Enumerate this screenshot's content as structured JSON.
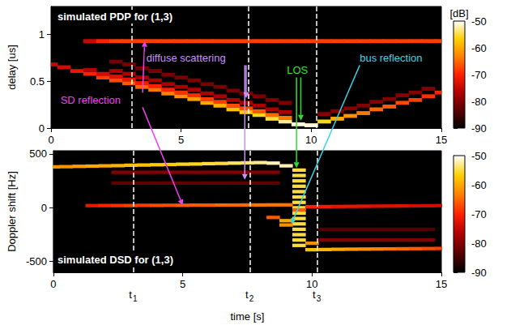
{
  "chart_data": [
    {
      "type": "heatmap",
      "title": "simulated PDP for (1,3)",
      "ylabel": "delay [us]",
      "xlim": [
        0,
        15
      ],
      "xticks": [
        0,
        5,
        10,
        15
      ],
      "ylim": [
        0,
        1.3
      ],
      "yticks": [
        0,
        0.5,
        1
      ],
      "colorbar": {
        "label": "[dB]",
        "range": [
          -90,
          -50
        ],
        "ticks": [
          -50,
          -60,
          -70,
          -80,
          -90
        ]
      },
      "vlines": [
        {
          "x": 3.1
        },
        {
          "x": 7.6
        },
        {
          "x": 10.2
        }
      ],
      "annotations": [
        {
          "text": "SD reflection",
          "color": "#f040f0"
        },
        {
          "text": "diffuse scattering",
          "color": "#c890ff"
        },
        {
          "text": "LOS",
          "color": "#30e030"
        },
        {
          "text": "bus reflection",
          "color": "#30d8e8"
        }
      ],
      "cells": [
        [
          0,
          0.68,
          -75
        ],
        [
          0.5,
          0.65,
          -74
        ],
        [
          1,
          0.61,
          -72
        ],
        [
          1.5,
          0.58,
          -70
        ],
        [
          2,
          0.54,
          -68
        ],
        [
          2.5,
          0.51,
          -67
        ],
        [
          3,
          0.48,
          -66
        ],
        [
          3.5,
          0.44,
          -65
        ],
        [
          4,
          0.41,
          -64
        ],
        [
          4.5,
          0.37,
          -63
        ],
        [
          5,
          0.34,
          -62
        ],
        [
          5.5,
          0.31,
          -61
        ],
        [
          6,
          0.27,
          -60
        ],
        [
          6.5,
          0.24,
          -59
        ],
        [
          7,
          0.2,
          -58
        ],
        [
          7.5,
          0.17,
          -57
        ],
        [
          8,
          0.14,
          -56
        ],
        [
          8.5,
          0.1,
          -55
        ],
        [
          9,
          0.07,
          -53
        ],
        [
          9.5,
          0.04,
          -51
        ],
        [
          10,
          0.03,
          -51
        ],
        [
          10.5,
          0.07,
          -56
        ],
        [
          11,
          0.1,
          -60
        ],
        [
          11.5,
          0.13,
          -62
        ],
        [
          12,
          0.16,
          -64
        ],
        [
          12.5,
          0.2,
          -65
        ],
        [
          13,
          0.23,
          -66
        ],
        [
          13.5,
          0.27,
          -67
        ],
        [
          14,
          0.3,
          -68
        ],
        [
          14.5,
          0.34,
          -69
        ],
        [
          15,
          0.38,
          -70
        ],
        [
          1.5,
          0.62,
          -76
        ],
        [
          2,
          0.58,
          -74
        ],
        [
          2.5,
          0.55,
          -73
        ],
        [
          3,
          0.52,
          -72
        ],
        [
          3.5,
          0.48,
          -71
        ],
        [
          4,
          0.45,
          -70
        ],
        [
          4.5,
          0.41,
          -70
        ],
        [
          5,
          0.38,
          -69
        ],
        [
          5.5,
          0.35,
          -69
        ],
        [
          6,
          0.31,
          -68
        ],
        [
          6.5,
          0.28,
          -68
        ],
        [
          7,
          0.24,
          -67
        ],
        [
          7.5,
          0.21,
          -67
        ],
        [
          8,
          0.18,
          -66
        ],
        [
          8.5,
          0.14,
          -65
        ],
        [
          9,
          0.11,
          -64
        ],
        [
          1.5,
          0.93,
          -75
        ],
        [
          2,
          0.93,
          -70
        ],
        [
          2.5,
          0.93,
          -68
        ],
        [
          3,
          0.93,
          -68
        ],
        [
          3.5,
          0.93,
          -68
        ],
        [
          4,
          0.93,
          -68
        ],
        [
          4.5,
          0.93,
          -68
        ],
        [
          5,
          0.93,
          -68
        ],
        [
          5.5,
          0.93,
          -68
        ],
        [
          6,
          0.93,
          -68
        ],
        [
          6.5,
          0.93,
          -68
        ],
        [
          7,
          0.93,
          -68
        ],
        [
          7.5,
          0.93,
          -68
        ],
        [
          8,
          0.93,
          -68
        ],
        [
          8.5,
          0.93,
          -68
        ],
        [
          9,
          0.93,
          -68
        ],
        [
          9.5,
          0.93,
          -68
        ],
        [
          10,
          0.93,
          -68
        ],
        [
          10.5,
          0.93,
          -68
        ],
        [
          11,
          0.93,
          -68
        ],
        [
          11.5,
          0.93,
          -68
        ],
        [
          12,
          0.93,
          -68
        ],
        [
          12.5,
          0.93,
          -68
        ],
        [
          13,
          0.93,
          -68
        ],
        [
          13.5,
          0.93,
          -68
        ],
        [
          14,
          0.93,
          -68
        ],
        [
          14.5,
          0.93,
          -68
        ],
        [
          15,
          0.93,
          -68
        ],
        [
          2.5,
          0.61,
          -77
        ],
        [
          2.5,
          0.71,
          -81
        ],
        [
          3,
          0.58,
          -77
        ],
        [
          3,
          0.68,
          -81
        ],
        [
          3.5,
          0.54,
          -77
        ],
        [
          3.5,
          0.64,
          -81
        ],
        [
          4,
          0.51,
          -77
        ],
        [
          4,
          0.61,
          -81
        ],
        [
          4.5,
          0.47,
          -77
        ],
        [
          4.5,
          0.57,
          -81
        ],
        [
          5,
          0.44,
          -77
        ],
        [
          5,
          0.54,
          -81
        ],
        [
          5.5,
          0.41,
          -77
        ],
        [
          5.5,
          0.51,
          -81
        ],
        [
          6,
          0.37,
          -77
        ],
        [
          6,
          0.47,
          -81
        ],
        [
          6.5,
          0.34,
          -77
        ],
        [
          6.5,
          0.44,
          -81
        ],
        [
          7,
          0.3,
          -77
        ],
        [
          7,
          0.4,
          -81
        ],
        [
          7.5,
          0.27,
          -77
        ],
        [
          7.5,
          0.37,
          -81
        ],
        [
          8,
          0.24,
          -77
        ],
        [
          8,
          0.34,
          -81
        ],
        [
          8.5,
          0.2,
          -77
        ],
        [
          8.5,
          0.3,
          -81
        ],
        [
          9,
          0.17,
          -77
        ],
        [
          9,
          0.27,
          -81
        ],
        [
          10.5,
          0.15,
          -80
        ],
        [
          11,
          0.18,
          -80
        ],
        [
          11.5,
          0.21,
          -80
        ],
        [
          12,
          0.24,
          -80
        ],
        [
          12.5,
          0.28,
          -80
        ],
        [
          13,
          0.31,
          -80
        ],
        [
          13.5,
          0.35,
          -80
        ],
        [
          14,
          0.38,
          -80
        ],
        [
          14.5,
          0.42,
          -80
        ]
      ]
    },
    {
      "type": "heatmap",
      "title": "simulated DSD for (1,3)",
      "xlabel": "time [s]",
      "ylabel": "Doppler shift [Hz]",
      "xlim": [
        0,
        15
      ],
      "xticks": [
        0,
        5,
        10,
        15
      ],
      "ylim": [
        -600,
        530
      ],
      "yticks": [
        -500,
        0,
        500
      ],
      "colorbar": {
        "range": [
          -90,
          -50
        ],
        "ticks": [
          -50,
          -60,
          -70,
          -80,
          -90
        ]
      },
      "vlines": [
        {
          "x": 3.1,
          "label": "t",
          "subscript": "1"
        },
        {
          "x": 7.6,
          "label": "t",
          "subscript": "2"
        },
        {
          "x": 10.2,
          "label": "t",
          "subscript": "3"
        }
      ],
      "cells": [
        [
          0,
          380,
          -62
        ],
        [
          0.5,
          382,
          -62
        ],
        [
          1,
          385,
          -61
        ],
        [
          1.5,
          387,
          -60
        ],
        [
          2,
          390,
          -60
        ],
        [
          2.5,
          392,
          -59
        ],
        [
          3,
          395,
          -58
        ],
        [
          3.5,
          397,
          -58
        ],
        [
          4,
          400,
          -57
        ],
        [
          4.5,
          402,
          -57
        ],
        [
          5,
          405,
          -56
        ],
        [
          5.5,
          407,
          -56
        ],
        [
          6,
          410,
          -55
        ],
        [
          6.5,
          412,
          -55
        ],
        [
          7,
          415,
          -54
        ],
        [
          7.5,
          418,
          -54
        ],
        [
          8,
          420,
          -53
        ],
        [
          8.5,
          415,
          -52
        ],
        [
          9,
          390,
          -52
        ],
        [
          9.5,
          350,
          -55
        ],
        [
          9.5,
          300,
          -55
        ],
        [
          9.5,
          250,
          -55
        ],
        [
          9.5,
          200,
          -55
        ],
        [
          9.5,
          150,
          -55
        ],
        [
          9.5,
          100,
          -55
        ],
        [
          9.5,
          50,
          -55
        ],
        [
          9.5,
          0,
          -55
        ],
        [
          9.5,
          -50,
          -55
        ],
        [
          9.5,
          -100,
          -55
        ],
        [
          9.5,
          -150,
          -55
        ],
        [
          9.5,
          -200,
          -55
        ],
        [
          9.5,
          -250,
          -55
        ],
        [
          9.5,
          -300,
          -55
        ],
        [
          9.5,
          -350,
          -55
        ],
        [
          10,
          -390,
          -58
        ],
        [
          10.5,
          -388,
          -59
        ],
        [
          11,
          -386,
          -60
        ],
        [
          11.5,
          -385,
          -61
        ],
        [
          12,
          -384,
          -62
        ],
        [
          12.5,
          -383,
          -63
        ],
        [
          13,
          -382,
          -64
        ],
        [
          13.5,
          -381,
          -65
        ],
        [
          14,
          -380,
          -66
        ],
        [
          14.5,
          -379,
          -67
        ],
        [
          15,
          -378,
          -68
        ],
        [
          1.5,
          20,
          -72
        ],
        [
          2,
          20,
          -70
        ],
        [
          2.5,
          21,
          -69
        ],
        [
          3,
          21,
          -68
        ],
        [
          3.5,
          22,
          -68
        ],
        [
          4,
          22,
          -67
        ],
        [
          4.5,
          23,
          -67
        ],
        [
          5,
          23,
          -66
        ],
        [
          5.5,
          24,
          -66
        ],
        [
          6,
          24,
          -66
        ],
        [
          6.5,
          25,
          -65
        ],
        [
          7,
          25,
          -65
        ],
        [
          7.5,
          26,
          -65
        ],
        [
          8,
          26,
          -64
        ],
        [
          8.5,
          27,
          -64
        ],
        [
          9,
          27,
          -64
        ],
        [
          9.5,
          -20,
          -66
        ],
        [
          10,
          10,
          -70
        ],
        [
          10.5,
          11,
          -71
        ],
        [
          11,
          12,
          -72
        ],
        [
          11.5,
          13,
          -72
        ],
        [
          12,
          14,
          -72
        ],
        [
          12.5,
          15,
          -73
        ],
        [
          13,
          16,
          -73
        ],
        [
          13.5,
          17,
          -73
        ],
        [
          14,
          18,
          -74
        ],
        [
          14.5,
          19,
          -74
        ],
        [
          15,
          20,
          -74
        ],
        [
          8.5,
          -90,
          -66
        ],
        [
          9,
          -120,
          -60
        ],
        [
          9,
          -160,
          -62
        ],
        [
          10,
          -330,
          -62
        ],
        [
          2.5,
          330,
          -80
        ],
        [
          2.5,
          230,
          -83
        ],
        [
          3,
          330,
          -80
        ],
        [
          3,
          230,
          -83
        ],
        [
          3.5,
          330,
          -80
        ],
        [
          3.5,
          230,
          -83
        ],
        [
          4,
          330,
          -80
        ],
        [
          4,
          230,
          -83
        ],
        [
          4.5,
          330,
          -80
        ],
        [
          4.5,
          230,
          -83
        ],
        [
          5,
          330,
          -80
        ],
        [
          5,
          230,
          -83
        ],
        [
          5.5,
          330,
          -80
        ],
        [
          5.5,
          230,
          -83
        ],
        [
          6,
          330,
          -80
        ],
        [
          6,
          230,
          -83
        ],
        [
          6.5,
          330,
          -80
        ],
        [
          6.5,
          230,
          -83
        ],
        [
          7,
          330,
          -80
        ],
        [
          7,
          230,
          -83
        ],
        [
          7.5,
          330,
          -80
        ],
        [
          7.5,
          230,
          -83
        ],
        [
          8,
          330,
          -80
        ],
        [
          8,
          230,
          -83
        ],
        [
          8.5,
          330,
          -80
        ],
        [
          8.5,
          230,
          -83
        ],
        [
          10.5,
          -300,
          -80
        ],
        [
          10.5,
          -200,
          -84
        ],
        [
          11,
          -300,
          -80
        ],
        [
          11,
          -200,
          -84
        ],
        [
          11.5,
          -300,
          -80
        ],
        [
          11.5,
          -200,
          -84
        ],
        [
          12,
          -300,
          -80
        ],
        [
          12,
          -200,
          -84
        ],
        [
          12.5,
          -300,
          -80
        ],
        [
          12.5,
          -200,
          -84
        ],
        [
          13,
          -300,
          -80
        ],
        [
          13,
          -200,
          -84
        ],
        [
          13.5,
          -300,
          -80
        ],
        [
          13.5,
          -200,
          -84
        ],
        [
          14,
          -300,
          -80
        ],
        [
          14,
          -200,
          -84
        ],
        [
          14.5,
          -300,
          -80
        ],
        [
          14.5,
          -200,
          -84
        ]
      ]
    }
  ]
}
